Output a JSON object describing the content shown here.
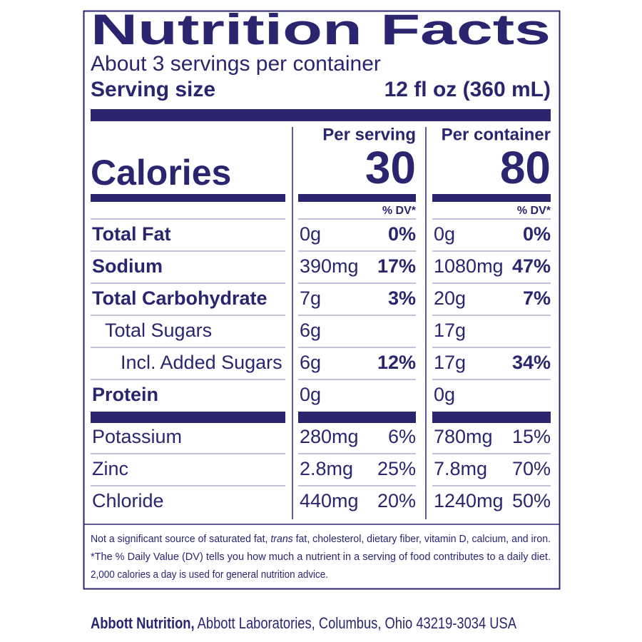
{
  "title": "Nutrition Facts",
  "servings": "About 3 servings per container",
  "serving_size": {
    "label": "Serving size",
    "value": "12 fl oz (360 mL)"
  },
  "columns": [
    {
      "header": "Per serving",
      "calories": 30,
      "dv_header": "% DV*"
    },
    {
      "header": "Per container",
      "calories": 80,
      "dv_header": "% DV*"
    }
  ],
  "calories_label": "Calories",
  "nutrients": [
    {
      "name": "Total Fat",
      "values": [
        {
          "amount": "0g",
          "dv": "0%"
        },
        {
          "amount": "0g",
          "dv": "0%"
        }
      ]
    },
    {
      "name": "Sodium",
      "values": [
        {
          "amount": "390mg",
          "dv": "17%"
        },
        {
          "amount": "1080mg",
          "dv": "47%"
        }
      ]
    },
    {
      "name": "Total Carbohydrate",
      "values": [
        {
          "amount": "7g",
          "dv": "3%"
        },
        {
          "amount": "20g",
          "dv": "7%"
        }
      ],
      "sub": [
        {
          "name": "Total Sugars",
          "values": [
            {
              "amount": "6g"
            },
            {
              "amount": "17g"
            }
          ],
          "sub": [
            {
              "name": "Incl. Added Sugars",
              "values": [
                {
                  "amount": "6g",
                  "dv": "12%"
                },
                {
                  "amount": "17g",
                  "dv": "34%"
                }
              ]
            }
          ]
        }
      ]
    },
    {
      "name": "Protein",
      "values": [
        {
          "amount": "0g"
        },
        {
          "amount": "0g"
        }
      ]
    }
  ],
  "minerals": [
    {
      "name": "Potassium",
      "values": [
        {
          "amount": "280mg",
          "dv": "6%"
        },
        {
          "amount": "780mg",
          "dv": "15%"
        }
      ]
    },
    {
      "name": "Zinc",
      "values": [
        {
          "amount": "2.8mg",
          "dv": "25%"
        },
        {
          "amount": "7.8mg",
          "dv": "70%"
        }
      ]
    },
    {
      "name": "Chloride",
      "values": [
        {
          "amount": "440mg",
          "dv": "20%"
        },
        {
          "amount": "1240mg",
          "dv": "50%"
        }
      ]
    }
  ],
  "footnotes": [
    [
      "Not a significant source of saturated fat, ",
      "trans",
      " fat, cholesterol, dietary fiber, vitamin D, calcium, and iron."
    ],
    [
      "*The % Daily Value (DV) tells you how much a nutrient in a serving of food contributes to a daily diet."
    ],
    [
      "2,000 calories a day is used for general nutrition advice."
    ]
  ],
  "footer": {
    "company": "Abbott Nutrition,",
    "address": " Abbott Laboratories, Columbus, Ohio 43219-3034 USA"
  }
}
